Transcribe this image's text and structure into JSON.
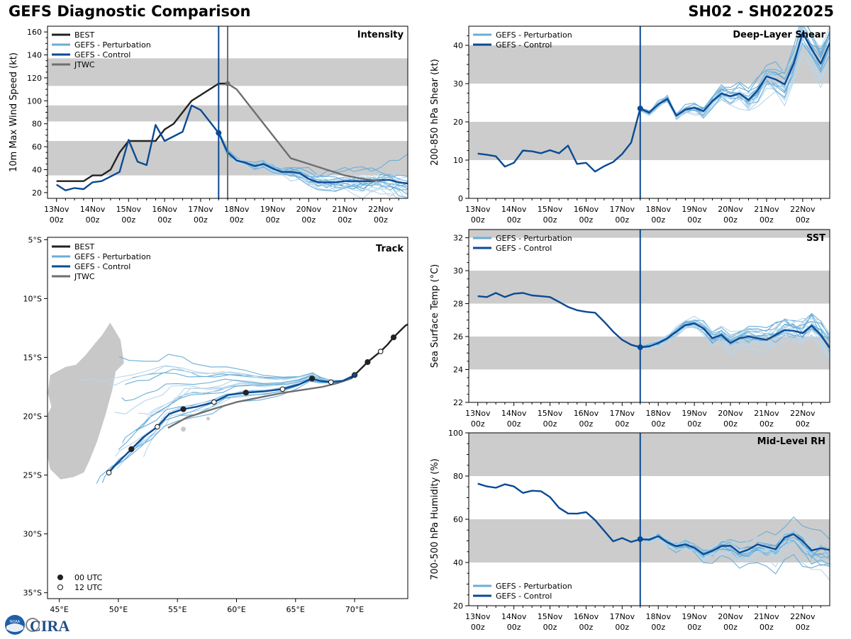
{
  "header": {
    "title_left": "GEFS Diagnostic Comparison",
    "title_right": "SH02 - SH022025"
  },
  "colors": {
    "best": "#222222",
    "perturbation": "#6aaed6",
    "perturbation_light": "#b8d6ec",
    "control": "#0a4a94",
    "jtwc": "#6e6e6e",
    "band": "#cccccc",
    "land": "#c8c8c8"
  },
  "time_axis": {
    "ticks": [
      0,
      24,
      48,
      72,
      96,
      120,
      144,
      168,
      192,
      216
    ],
    "labels": [
      "13Nov\n00z",
      "14Nov\n00z",
      "15Nov\n00z",
      "16Nov\n00z",
      "17Nov\n00z",
      "18Nov\n00z",
      "19Nov\n00z",
      "20Nov\n00z",
      "21Nov\n00z",
      "22Nov\n00z"
    ],
    "range": [
      -6,
      234
    ],
    "init_hour": 108
  },
  "logo": {
    "text": "CIRA",
    "badge": "NOAA"
  },
  "chart_data": [
    {
      "id": "intensity",
      "type": "line",
      "title": "Intensity",
      "ylabel": "10m Max Wind Speed (kt)",
      "ylim": [
        15,
        165
      ],
      "yticks": [
        20,
        40,
        60,
        80,
        100,
        120,
        140,
        160
      ],
      "bands": [
        [
          35,
          65
        ],
        [
          82,
          96
        ],
        [
          113,
          137
        ]
      ],
      "jtwc_time": 114,
      "legend": [
        "BEST",
        "GEFS - Perturbation",
        "GEFS - Control",
        "JTWC"
      ],
      "series": [
        {
          "name": "BEST",
          "role": "best",
          "x": [
            0,
            6,
            12,
            18,
            24,
            30,
            36,
            42,
            48,
            54,
            60,
            66,
            72,
            78,
            84,
            90,
            96,
            102,
            108,
            114
          ],
          "y": [
            30,
            30,
            30,
            30,
            35,
            35,
            40,
            55,
            65,
            65,
            65,
            65,
            75,
            80,
            90,
            100,
            105,
            110,
            115,
            115
          ]
        },
        {
          "name": "GEFS - Control",
          "role": "control",
          "x": [
            0,
            6,
            12,
            18,
            24,
            30,
            36,
            42,
            48,
            54,
            60,
            66,
            72,
            78,
            84,
            90,
            96,
            102,
            108,
            114,
            120,
            126,
            132,
            138,
            144,
            150,
            156,
            162,
            168,
            174,
            180,
            186,
            192,
            198,
            204,
            210,
            216,
            222,
            228,
            234
          ],
          "y": [
            27,
            22,
            24,
            23,
            29,
            30,
            34,
            38,
            66,
            47,
            44,
            79,
            65,
            69,
            73,
            96,
            92,
            82,
            72,
            55,
            48,
            46,
            43,
            45,
            41,
            38,
            38,
            37,
            32,
            29,
            29,
            29,
            30,
            30,
            30,
            30,
            31,
            31,
            29,
            28
          ]
        },
        {
          "name": "JTWC",
          "role": "jtwc",
          "x": [
            114,
            120,
            132,
            144,
            156,
            168,
            180,
            192,
            204,
            216
          ],
          "y": [
            115,
            110,
            90,
            70,
            50,
            45,
            40,
            35,
            32,
            30
          ]
        }
      ]
    },
    {
      "id": "shear",
      "type": "line",
      "title": "Deep-Layer Shear",
      "ylabel": "200-850 hPa Shear (kt)",
      "ylim": [
        0,
        45
      ],
      "yticks": [
        0,
        10,
        20,
        30,
        40
      ],
      "bands": [
        [
          10,
          20
        ],
        [
          30,
          40
        ]
      ],
      "legend": [
        "GEFS - Perturbation",
        "GEFS - Control"
      ],
      "series": [
        {
          "name": "GEFS - Control",
          "role": "control",
          "x": [
            0,
            6,
            12,
            18,
            24,
            30,
            36,
            42,
            48,
            54,
            60,
            66,
            72,
            78,
            84,
            90,
            96,
            102,
            108,
            114,
            120,
            126,
            132,
            138,
            144,
            150,
            156,
            162,
            168,
            174,
            180,
            186,
            192,
            198,
            204,
            210,
            216,
            222,
            228,
            234
          ],
          "y": [
            11.7,
            11.4,
            11,
            8.3,
            9.3,
            12.5,
            12.3,
            11.8,
            12.6,
            11.8,
            13.8,
            9,
            9.3,
            7,
            8.4,
            9.5,
            11.6,
            14.6,
            23.5,
            22.4,
            24.6,
            26,
            21.6,
            23.2,
            23.7,
            22.8,
            25.4,
            27.4,
            26.7,
            27.4,
            25.7,
            28.2,
            31.9,
            31.1,
            29.8,
            35.2,
            43.3,
            39,
            35.2,
            40.6
          ]
        }
      ]
    },
    {
      "id": "track",
      "type": "line",
      "title": "Track",
      "xlim": [
        44,
        74.5
      ],
      "ylim": [
        -35.5,
        -4.8
      ],
      "xticks": [
        45,
        50,
        55,
        60,
        65,
        70
      ],
      "xtick_labels": [
        "45°E",
        "50°E",
        "55°E",
        "60°E",
        "65°E",
        "70°E"
      ],
      "yticks": [
        -5,
        -10,
        -15,
        -20,
        -25,
        -30,
        -35
      ],
      "ytick_labels": [
        "5°S",
        "10°S",
        "15°S",
        "20°S",
        "25°S",
        "30°S",
        "35°S"
      ],
      "legend": [
        "BEST",
        "GEFS - Perturbation",
        "GEFS - Control",
        "JTWC"
      ],
      "marker_legend": [
        "00 UTC",
        "12 UTC"
      ],
      "series": [
        {
          "name": "BEST",
          "role": "best",
          "lon": [
            69.7,
            70.4,
            71.1,
            71.7,
            72.2,
            72.8,
            73.3,
            73.8,
            74.3,
            74.5
          ],
          "lat": [
            -16.8,
            -16.1,
            -15.4,
            -14.9,
            -14.5,
            -13.9,
            -13.3,
            -12.8,
            -12.3,
            -12.2
          ],
          "markers00": [
            [
              71.1,
              -15.4
            ],
            [
              73.3,
              -13.3
            ]
          ],
          "markers12": [
            [
              72.2,
              -14.5
            ]
          ]
        },
        {
          "name": "GEFS - Control",
          "role": "control",
          "lon": [
            70.0,
            69.0,
            68.0,
            67.1,
            66.4,
            65.3,
            63.9,
            62.3,
            60.8,
            59.3,
            58.1,
            56.6,
            55.5,
            54.3,
            53.3,
            52.1,
            51.1,
            50.3,
            49.7,
            49.2
          ],
          "lat": [
            -16.5,
            -17.0,
            -17.1,
            -17.0,
            -16.8,
            -17.3,
            -17.7,
            -17.9,
            -18.0,
            -18.2,
            -18.8,
            -19.2,
            -19.4,
            -19.8,
            -20.9,
            -21.8,
            -22.8,
            -23.6,
            -24.2,
            -24.8
          ],
          "markers00": [
            [
              70.0,
              -16.5
            ],
            [
              66.4,
              -16.8
            ],
            [
              60.8,
              -18.0
            ],
            [
              55.5,
              -19.4
            ],
            [
              51.1,
              -22.8
            ]
          ],
          "markers12": [
            [
              68.0,
              -17.1
            ],
            [
              63.9,
              -17.7
            ],
            [
              58.1,
              -18.8
            ],
            [
              53.3,
              -20.9
            ],
            [
              49.2,
              -24.8
            ]
          ]
        },
        {
          "name": "JTWC",
          "role": "jtwc",
          "lon": [
            69.7,
            68.5,
            67.3,
            66.0,
            64.0,
            62.0,
            60.0,
            58.0,
            55.8,
            54.2
          ],
          "lat": [
            -16.8,
            -17.2,
            -17.5,
            -17.7,
            -18.0,
            -18.4,
            -18.8,
            -19.4,
            -20.1,
            -21.0
          ]
        }
      ]
    },
    {
      "id": "sst",
      "type": "line",
      "title": "SST",
      "ylabel": "Sea Surface Temp (°C)",
      "ylim": [
        22,
        32.5
      ],
      "yticks": [
        22,
        24,
        26,
        28,
        30,
        32
      ],
      "bands": [
        [
          24,
          26
        ],
        [
          28,
          30
        ],
        [
          32,
          34
        ]
      ],
      "legend": [
        "GEFS - Perturbation",
        "GEFS - Control"
      ],
      "series": [
        {
          "name": "GEFS - Control",
          "role": "control",
          "x": [
            0,
            6,
            12,
            18,
            24,
            30,
            36,
            42,
            48,
            54,
            60,
            66,
            72,
            78,
            84,
            90,
            96,
            102,
            108,
            114,
            120,
            126,
            132,
            138,
            144,
            150,
            156,
            162,
            168,
            174,
            180,
            186,
            192,
            198,
            204,
            210,
            216,
            222,
            228,
            234
          ],
          "y": [
            28.45,
            28.4,
            28.65,
            28.4,
            28.6,
            28.65,
            28.5,
            28.45,
            28.4,
            28.1,
            27.8,
            27.6,
            27.5,
            27.45,
            26.9,
            26.3,
            25.8,
            25.5,
            25.35,
            25.4,
            25.6,
            25.9,
            26.3,
            26.7,
            26.8,
            26.5,
            25.9,
            26.1,
            25.6,
            25.9,
            26,
            25.9,
            25.8,
            26.1,
            26.4,
            26.35,
            26.2,
            26.65,
            26.1,
            25.3
          ]
        }
      ]
    },
    {
      "id": "rh",
      "type": "line",
      "title": "Mid-Level RH",
      "ylabel": "700-500 hPa Humidity (%)",
      "ylim": [
        20,
        100
      ],
      "yticks": [
        20,
        40,
        60,
        80,
        100
      ],
      "bands": [
        [
          40,
          60
        ],
        [
          80,
          100
        ]
      ],
      "legend": [
        "GEFS - Perturbation",
        "GEFS - Control"
      ],
      "series": [
        {
          "name": "GEFS - Control",
          "role": "control",
          "x": [
            0,
            6,
            12,
            18,
            24,
            30,
            36,
            42,
            48,
            54,
            60,
            66,
            72,
            78,
            84,
            90,
            96,
            102,
            108,
            114,
            120,
            126,
            132,
            138,
            144,
            150,
            156,
            162,
            168,
            174,
            180,
            186,
            192,
            198,
            204,
            210,
            216,
            222,
            228,
            234
          ],
          "y": [
            76.5,
            75.2,
            74.6,
            76.2,
            75.2,
            72.2,
            73.2,
            73,
            70.3,
            65.3,
            62.7,
            62.6,
            63.3,
            59.6,
            54.7,
            49.8,
            51.3,
            49.5,
            50.8,
            50.6,
            52.2,
            49.3,
            47.5,
            48.4,
            46.8,
            43.8,
            45.4,
            47.6,
            47.8,
            44.5,
            46,
            48.4,
            47.2,
            46.1,
            51.6,
            53.1,
            49.9,
            45.6,
            46.6,
            45.8
          ]
        }
      ]
    }
  ]
}
